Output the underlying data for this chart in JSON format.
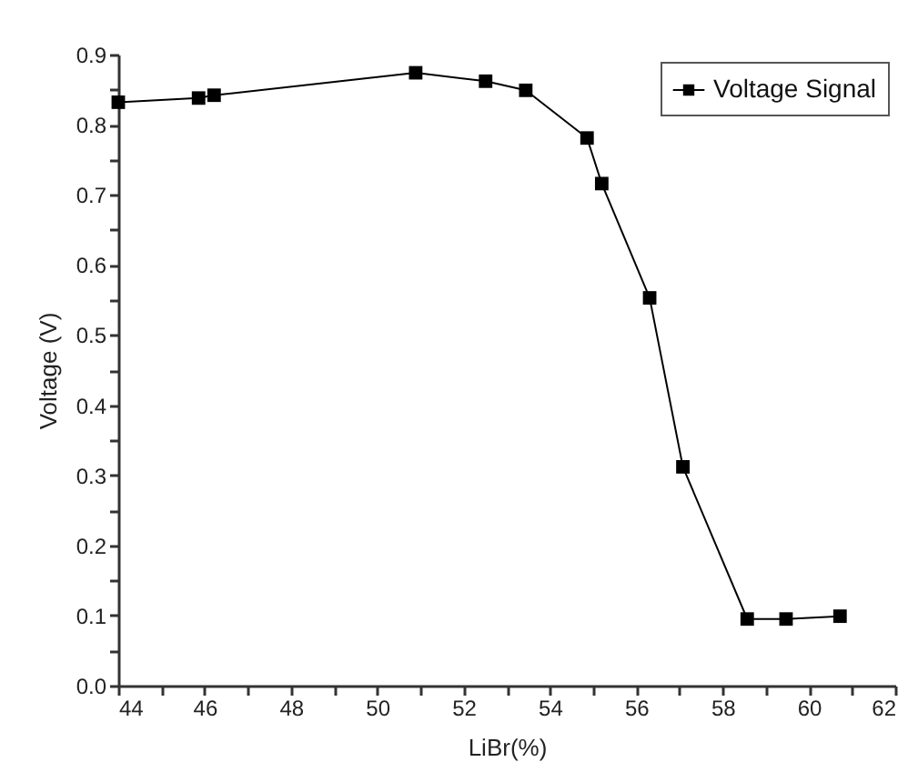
{
  "chart_data": {
    "type": "line",
    "xlabel": "LiBr(%)",
    "ylabel": "Voltage (V)",
    "x": [
      44.0,
      45.86,
      46.22,
      50.89,
      52.51,
      53.44,
      54.86,
      55.2,
      56.31,
      57.08,
      58.57,
      59.47,
      60.72
    ],
    "series": [
      {
        "name": "Voltage Signal",
        "color": "#000000",
        "values": [
          0.832,
          0.838,
          0.842,
          0.874,
          0.862,
          0.849,
          0.781,
          0.716,
          0.553,
          0.312,
          0.095,
          0.095,
          0.099
        ]
      }
    ],
    "xlim": [
      44,
      62
    ],
    "xticks": [
      44,
      {
        "value": 45,
        "label": null
      },
      46,
      {
        "value": 47,
        "label": null
      },
      48,
      {
        "value": 49,
        "label": null
      },
      50,
      {
        "value": 51,
        "label": null
      },
      52,
      {
        "value": 53,
        "label": null
      },
      54,
      {
        "value": 55,
        "label": null
      },
      56,
      {
        "value": 57,
        "label": null
      },
      58,
      {
        "value": 59,
        "label": null
      },
      60,
      {
        "value": 61,
        "label": null
      },
      62
    ],
    "ylim": [
      0,
      0.9
    ],
    "yticks": [
      {
        "value": 0,
        "label": "0.0"
      },
      {
        "value": 0.05,
        "label": null
      },
      0.1,
      {
        "value": 0.15,
        "label": null
      },
      0.2,
      {
        "value": 0.25,
        "label": null
      },
      0.3,
      {
        "value": 0.35,
        "label": null
      },
      0.4,
      {
        "value": 0.45,
        "label": null
      },
      0.5,
      {
        "value": 0.55,
        "label": null
      },
      0.6,
      {
        "value": 0.65,
        "label": null
      },
      0.7,
      {
        "value": 0.75,
        "label": null
      },
      0.8,
      {
        "value": 0.85,
        "label": null
      },
      0.9
    ],
    "grid": false,
    "legend": "top right",
    "marker": "square",
    "line_style": "solid"
  }
}
